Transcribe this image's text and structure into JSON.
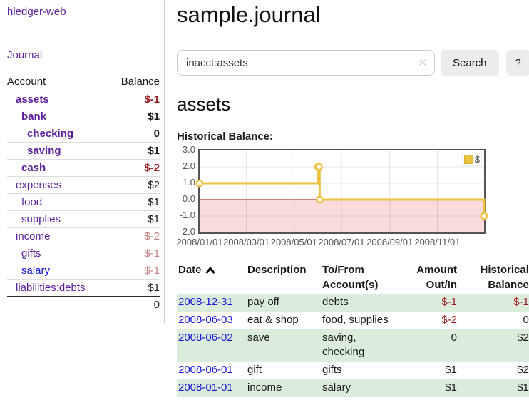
{
  "app": {
    "brand": "hledger-web"
  },
  "colors": {
    "link_purple": "#5b1d9c",
    "link_blue": "#1414dd",
    "negative_strong": "#9c1b1f",
    "negative_soft": "#c27d7d",
    "row_alt_green": "#dcecdc",
    "accent_gold": "#EDC240",
    "negative_region_pink": "#fadbdb",
    "zero_line_red": "#8b0000"
  },
  "sidebar": {
    "journal_label": "Journal",
    "table": {
      "headers": [
        "Account",
        "Balance"
      ],
      "rows": [
        {
          "label": "assets",
          "balance": "$-1",
          "depth": 1,
          "emph": true,
          "neg": "strong"
        },
        {
          "label": "bank",
          "balance": "$1",
          "depth": 2,
          "emph": true,
          "neg": null
        },
        {
          "label": "checking",
          "balance": "0",
          "depth": 3,
          "emph": true,
          "neg": null
        },
        {
          "label": "saving",
          "balance": "$1",
          "depth": 3,
          "emph": true,
          "neg": null
        },
        {
          "label": "cash",
          "balance": "$-2",
          "depth": 2,
          "emph": true,
          "neg": "strong"
        },
        {
          "label": "expenses",
          "balance": "$2",
          "depth": 1,
          "emph": false,
          "neg": null
        },
        {
          "label": "food",
          "balance": "$1",
          "depth": 2,
          "emph": false,
          "neg": null
        },
        {
          "label": "supplies",
          "balance": "$1",
          "depth": 2,
          "emph": false,
          "neg": null
        },
        {
          "label": "income",
          "balance": "$-2",
          "depth": 1,
          "emph": false,
          "neg": "soft"
        },
        {
          "label": "gifts",
          "balance": "$-1",
          "depth": 2,
          "emph": false,
          "neg": "soft"
        },
        {
          "label": "salary",
          "balance": "$-1",
          "depth": 2,
          "emph": false,
          "neg": "soft",
          "unvisited": true
        },
        {
          "label": "liabilities:debts",
          "balance": "$1",
          "depth": 1,
          "emph": false,
          "neg": null
        }
      ],
      "total": "0"
    }
  },
  "main": {
    "title": "sample.journal",
    "search": {
      "value": "inacct:assets",
      "clear_icon": "✕",
      "button_label": "Search",
      "help_label": "?"
    },
    "heading": "assets",
    "chart_label": "Historical Balance:"
  },
  "chart_data": {
    "type": "line",
    "title": "Historical Balance",
    "xlabel": "",
    "ylabel": "",
    "xlim": [
      "2008-01-01",
      "2008-12-31"
    ],
    "ylim": [
      -2.0,
      3.0
    ],
    "x_ticks": [
      "2008/01/01",
      "2008/03/01",
      "2008/05/01",
      "2008/07/01",
      "2008/09/01",
      "2008/11/01"
    ],
    "y_ticks": [
      3.0,
      2.0,
      1.0,
      0.0,
      -1.0,
      -2.0
    ],
    "grid": true,
    "legend_position": "top-right",
    "steps": true,
    "series": [
      {
        "name": "$",
        "color": "#EDC240",
        "points": [
          [
            "2008-01-01",
            1
          ],
          [
            "2008-06-01",
            2
          ],
          [
            "2008-06-02",
            2
          ],
          [
            "2008-06-03",
            0
          ],
          [
            "2008-12-31",
            -1
          ]
        ]
      }
    ],
    "negative_region_color": "#fadbdb",
    "zero_line_color": "#8b0000"
  },
  "register": {
    "headers": [
      {
        "line1": "Date",
        "align": "al",
        "sort_icon": "caret-up"
      },
      {
        "line1": "Description",
        "align": "al"
      },
      {
        "line1": "To/From",
        "line2": "Account(s)",
        "align": "al"
      },
      {
        "line1": "Amount",
        "line2": "Out/In",
        "align": "ar"
      },
      {
        "line1": "Historical",
        "line2": "Balance",
        "align": "ar"
      }
    ],
    "rows": [
      {
        "date": "2008-12-31",
        "description": "pay off",
        "accounts": "debts",
        "amount": "$-1",
        "balance": "$-1",
        "amount_neg": true,
        "balance_neg": true
      },
      {
        "date": "2008-06-03",
        "description": "eat & shop",
        "accounts": "food, supplies",
        "amount": "$-2",
        "balance": "0",
        "amount_neg": true,
        "balance_neg": false
      },
      {
        "date": "2008-06-02",
        "description": "save",
        "accounts": "saving, checking",
        "amount": "0",
        "balance": "$2",
        "amount_neg": false,
        "balance_neg": false
      },
      {
        "date": "2008-06-01",
        "description": "gift",
        "accounts": "gifts",
        "amount": "$1",
        "balance": "$2",
        "amount_neg": false,
        "balance_neg": false
      },
      {
        "date": "2008-01-01",
        "description": "income",
        "accounts": "salary",
        "amount": "$1",
        "balance": "$1",
        "amount_neg": false,
        "balance_neg": false
      }
    ]
  }
}
